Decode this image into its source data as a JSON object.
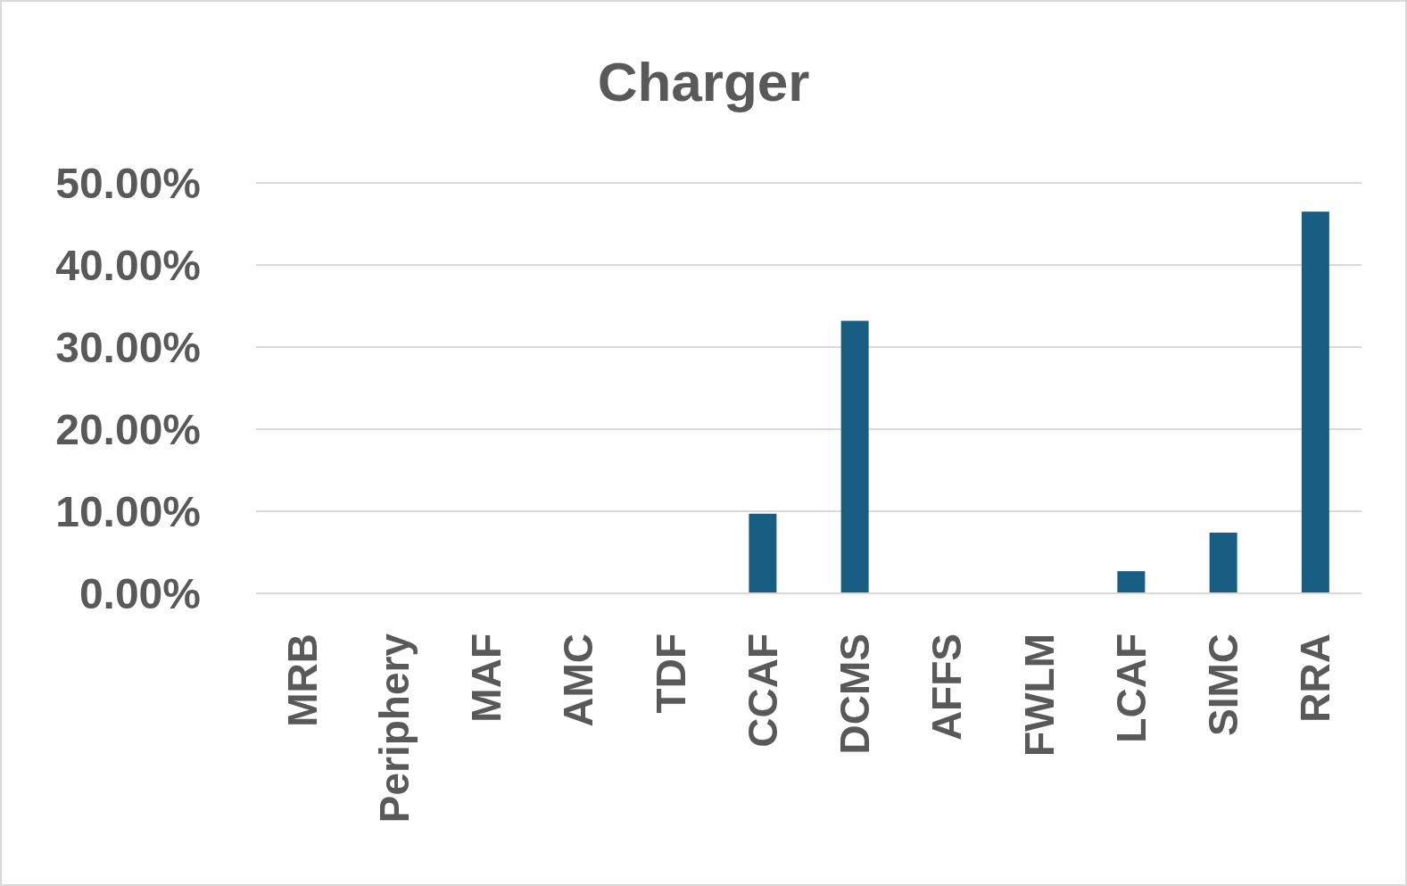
{
  "chart_data": {
    "type": "bar",
    "title": "Charger",
    "categories": [
      "MRB",
      "Periphery",
      "MAF",
      "AMC",
      "TDF",
      "CCAF",
      "DCMS",
      "AFFS",
      "FWLM",
      "LCAF",
      "SIMC",
      "RRA"
    ],
    "values": [
      0,
      0,
      0,
      0,
      0,
      9.7,
      33.2,
      0,
      0,
      2.7,
      7.4,
      46.5
    ],
    "color": "#175e82",
    "ylim": [
      0,
      50
    ],
    "yticks": [
      {
        "value": 0,
        "label": "0.00%"
      },
      {
        "value": 10,
        "label": "10.00%"
      },
      {
        "value": 20,
        "label": "20.00%"
      },
      {
        "value": 30,
        "label": "30.00%"
      },
      {
        "value": 40,
        "label": "40.00%"
      },
      {
        "value": 50,
        "label": "50.00%"
      }
    ],
    "grid": true
  }
}
